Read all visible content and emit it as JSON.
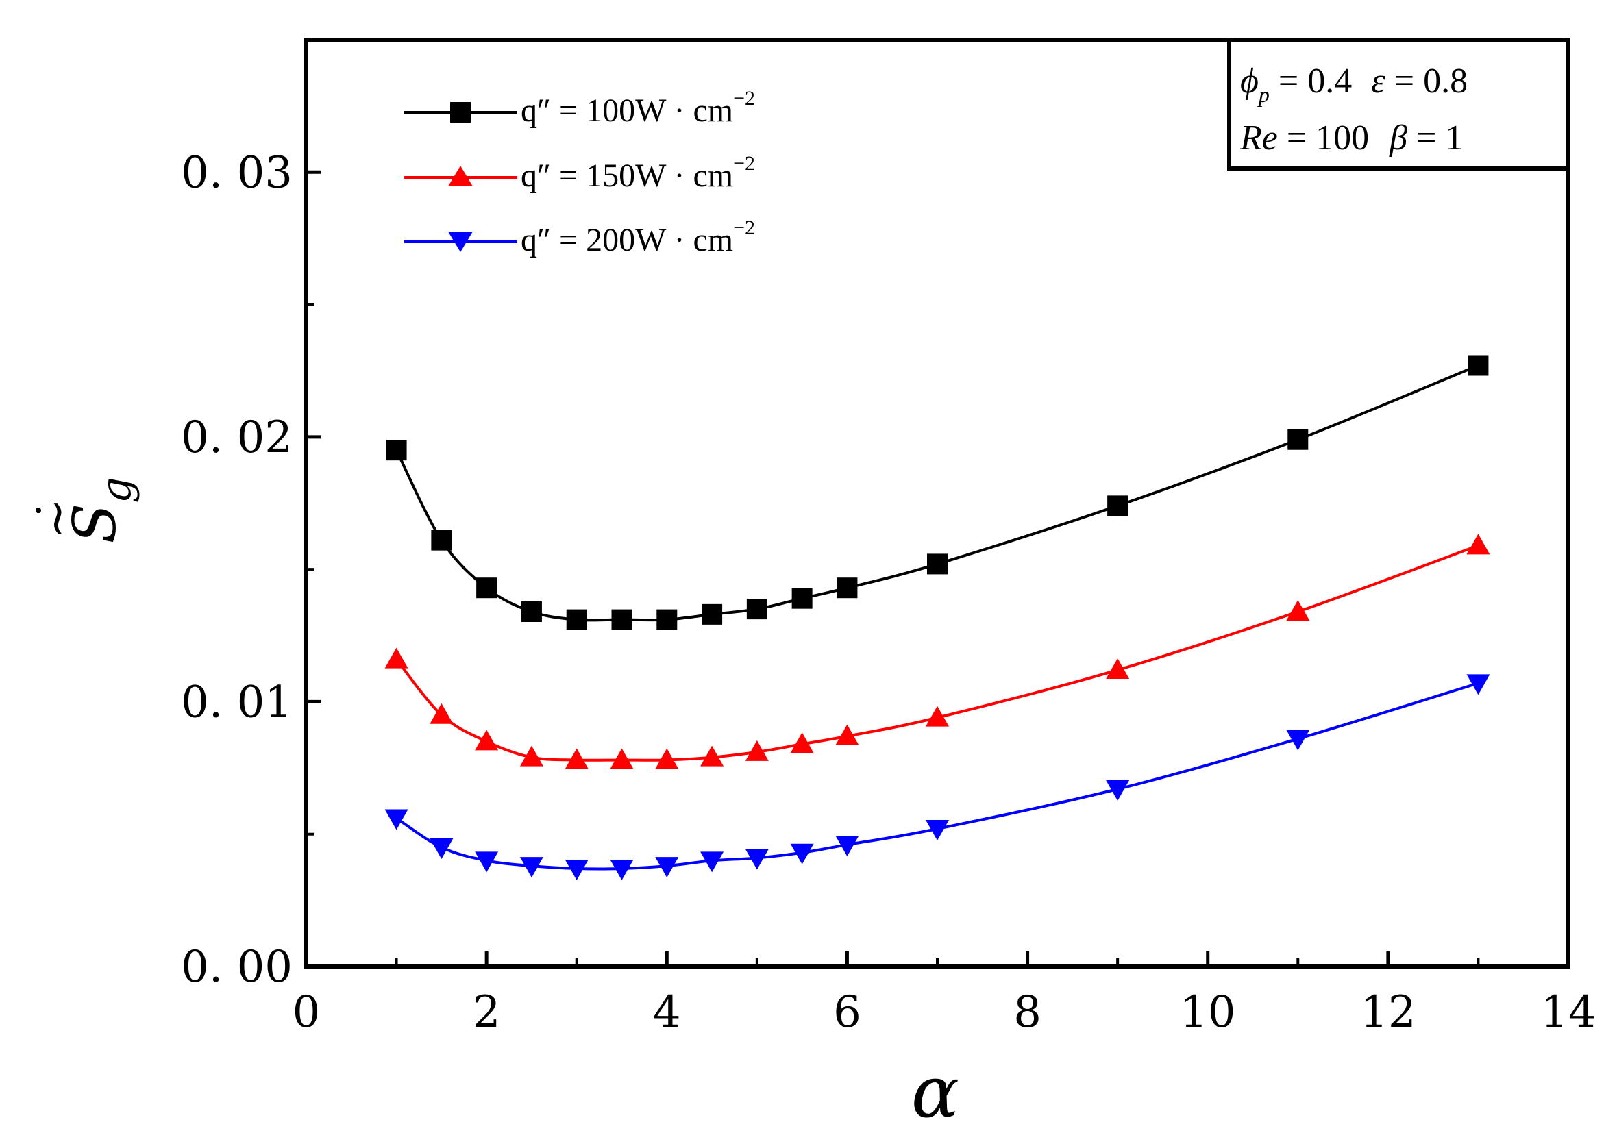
{
  "chart_data": {
    "type": "line",
    "title": "",
    "xlabel": "α",
    "ylabel": "S̃̇g",
    "ylabel_parts": {
      "tilde_dot": "~̇",
      "symbol": "S",
      "subscript": "g"
    },
    "xlim": [
      0,
      14
    ],
    "ylim": [
      0,
      0.035
    ],
    "x_ticks": [
      0,
      2,
      4,
      6,
      8,
      10,
      12,
      14
    ],
    "x_tick_labels": [
      "0",
      "2",
      "4",
      "6",
      "8",
      "10",
      "12",
      "14"
    ],
    "y_ticks": [
      0.0,
      0.01,
      0.02,
      0.03
    ],
    "y_tick_labels": [
      "0. 00",
      "0. 01",
      "0. 02",
      "0. 03"
    ],
    "grid": false,
    "legend_position": "top-left",
    "x": [
      1,
      1.5,
      2,
      2.5,
      3,
      3.5,
      4,
      4.5,
      5,
      5.5,
      6,
      7,
      9,
      11,
      13
    ],
    "series": [
      {
        "name": "q″ = 100W · cm⁻²",
        "legend_parts": {
          "prefix": "q″ = 100W · cm",
          "exponent": "−2"
        },
        "color": "#000000",
        "marker": "square",
        "values": [
          0.0195,
          0.0161,
          0.0143,
          0.0134,
          0.0131,
          0.0131,
          0.0131,
          0.0133,
          0.0135,
          0.0139,
          0.0143,
          0.0152,
          0.0174,
          0.0199,
          0.0227
        ]
      },
      {
        "name": "q″ = 150W · cm⁻²",
        "legend_parts": {
          "prefix": "q″ = 150W · cm",
          "exponent": "−2"
        },
        "color": "#ff0000",
        "marker": "triangle-up",
        "values": [
          0.0116,
          0.0095,
          0.0085,
          0.0079,
          0.0078,
          0.0078,
          0.0078,
          0.0079,
          0.0081,
          0.0084,
          0.0087,
          0.0094,
          0.0112,
          0.0134,
          0.0159
        ]
      },
      {
        "name": "q″ = 200W · cm⁻²",
        "legend_parts": {
          "prefix": "q″ = 200W · cm",
          "exponent": "−2"
        },
        "color": "#0000ff",
        "marker": "triangle-down",
        "values": [
          0.0056,
          0.0045,
          0.004,
          0.0038,
          0.0037,
          0.0037,
          0.0038,
          0.004,
          0.0041,
          0.0043,
          0.0046,
          0.0052,
          0.0067,
          0.0086,
          0.0107
        ]
      }
    ],
    "annotation": {
      "line1": "ϕp = 0.4  ε = 0.8",
      "line2": "Re = 100  β = 1",
      "phi": "ϕ",
      "phi_sub": "p",
      "phi_val": " = 0.4",
      "eps": "ε",
      "eps_val": " = 0.8",
      "re": "Re",
      "re_val": " = 100",
      "beta": "β",
      "beta_val": " = 1"
    }
  }
}
